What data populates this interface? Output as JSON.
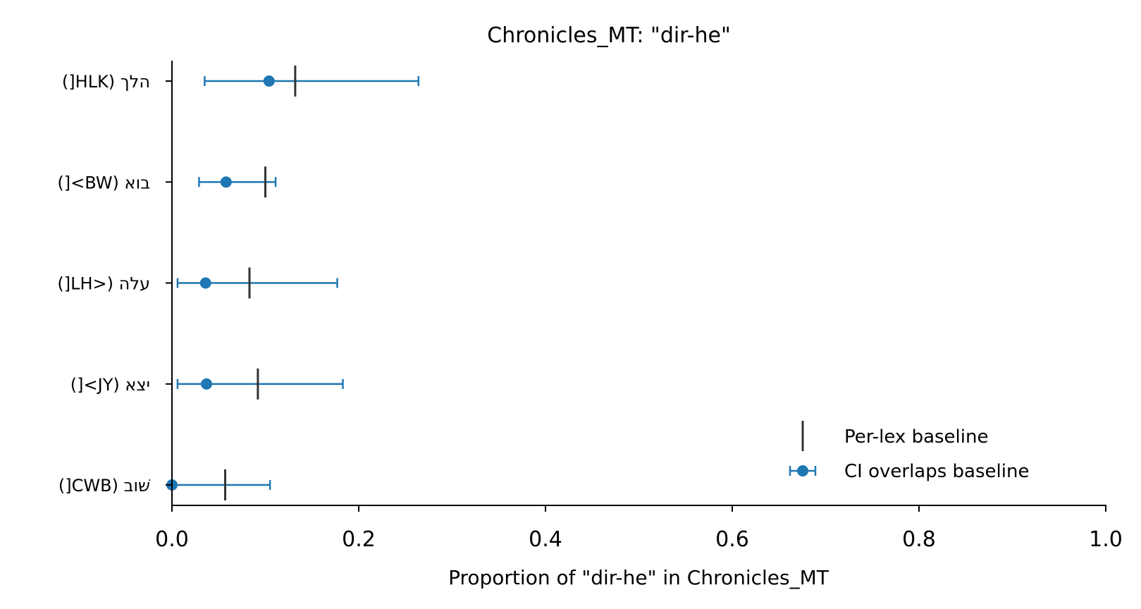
{
  "chart_data": {
    "type": "scatter",
    "title": "Chronicles_MT: \"dir-he\"",
    "xlabel": "Proportion of \"dir-he\" in Chronicles_MT",
    "ylabel": "",
    "xlim": [
      0.0,
      1.0
    ],
    "xticks": [
      "0.0",
      "0.2",
      "0.4",
      "0.6",
      "0.8",
      "1.0"
    ],
    "categories": [
      "הלך (HLK[)",
      "בוא (BW>[)",
      "עלה (<LH[)",
      "יצא (JY>[)",
      "שׁוב (CWB[)"
    ],
    "points": [
      {
        "label": "הלך (HLK[)",
        "value": 0.104,
        "ci_low": 0.035,
        "ci_high": 0.264,
        "baseline": 0.132
      },
      {
        "label": "בוא (BW>[)",
        "value": 0.058,
        "ci_low": 0.029,
        "ci_high": 0.111,
        "baseline": 0.1
      },
      {
        "label": "עלה (<LH[)",
        "value": 0.036,
        "ci_low": 0.006,
        "ci_high": 0.177,
        "baseline": 0.083
      },
      {
        "label": "יצא (JY>[)",
        "value": 0.037,
        "ci_low": 0.006,
        "ci_high": 0.183,
        "baseline": 0.092
      },
      {
        "label": "שׁוב (CWB[)",
        "value": 0.0,
        "ci_low": 0.0,
        "ci_high": 0.105,
        "baseline": 0.057
      }
    ],
    "grid": false,
    "legend_position": "lower-right",
    "legend": [
      {
        "label": "Per-lex baseline",
        "marker": "vertical-line"
      },
      {
        "label": "CI overlaps baseline",
        "marker": "point-with-errorbar"
      }
    ],
    "colors": {
      "points": "#1f77b4",
      "baseline": "#333333",
      "axis": "#000000"
    }
  }
}
